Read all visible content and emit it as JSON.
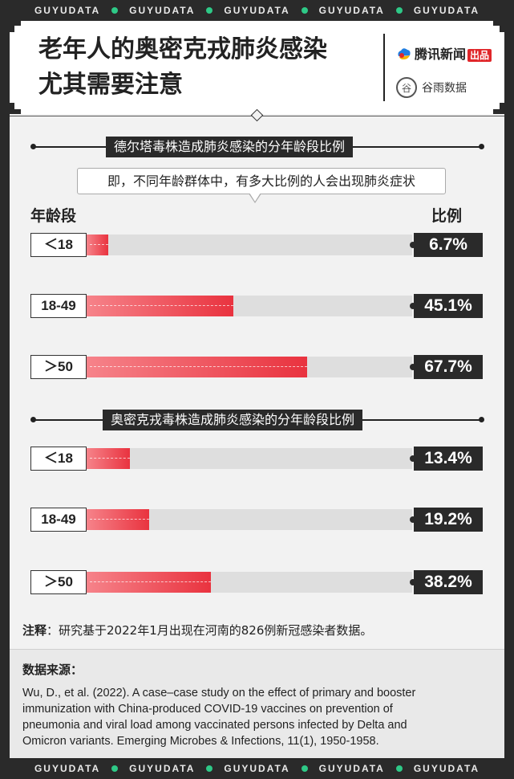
{
  "brand_strip": [
    "GUYUDATA",
    "GUYUDATA",
    "GUYUDATA",
    "GUYUDATA",
    "GUYUDATA"
  ],
  "header": {
    "title_line1": "老年人的奥密克戎肺炎感染",
    "title_line2": "尤其需要注意",
    "logo_tencent": "腾讯新闻",
    "logo_tencent_badge": "出品",
    "logo_guyu": "谷雨数据"
  },
  "callout": "即，不同年龄群体中，有多大比例的人会出现肺炎症状",
  "column_headers": {
    "left": "年龄段",
    "right": "比例"
  },
  "chart_data": [
    {
      "type": "bar",
      "title": "德尔塔毒株造成肺炎感染的分年龄段比例",
      "categories": [
        "＜18",
        "18-49",
        "＞50"
      ],
      "values": [
        6.7,
        45.1,
        67.7
      ],
      "value_labels": [
        "6.7%",
        "45.1%",
        "67.7%"
      ],
      "ylim": [
        0,
        100
      ],
      "orientation": "horizontal",
      "colors": {
        "bar_start": "#f6838a",
        "bar_end": "#e9333f",
        "track": "#dedede"
      }
    },
    {
      "type": "bar",
      "title": "奥密克戎毒株造成肺炎感染的分年龄段比例",
      "categories": [
        "＜18",
        "18-49",
        "＞50"
      ],
      "values": [
        13.4,
        19.2,
        38.2
      ],
      "value_labels": [
        "13.4%",
        "19.2%",
        "38.2%"
      ],
      "ylim": [
        0,
        100
      ],
      "orientation": "horizontal",
      "colors": {
        "bar_start": "#f6838a",
        "bar_end": "#e9333f",
        "track": "#dedede"
      }
    }
  ],
  "note": {
    "label": "注释",
    "text": "：研究基于2022年1月出现在河南的826例新冠感染者数据。"
  },
  "source": {
    "title": "数据来源：",
    "text": "Wu, D., et al. (2022). A case–case study on the effect of primary and booster\n immunization with China-produced COVID-19 vaccines on prevention of\npneumonia and viral load among vaccinated persons infected by Delta and\nOmicron variants. Emerging Microbes & Infections, 11(1), 1950-1958."
  }
}
